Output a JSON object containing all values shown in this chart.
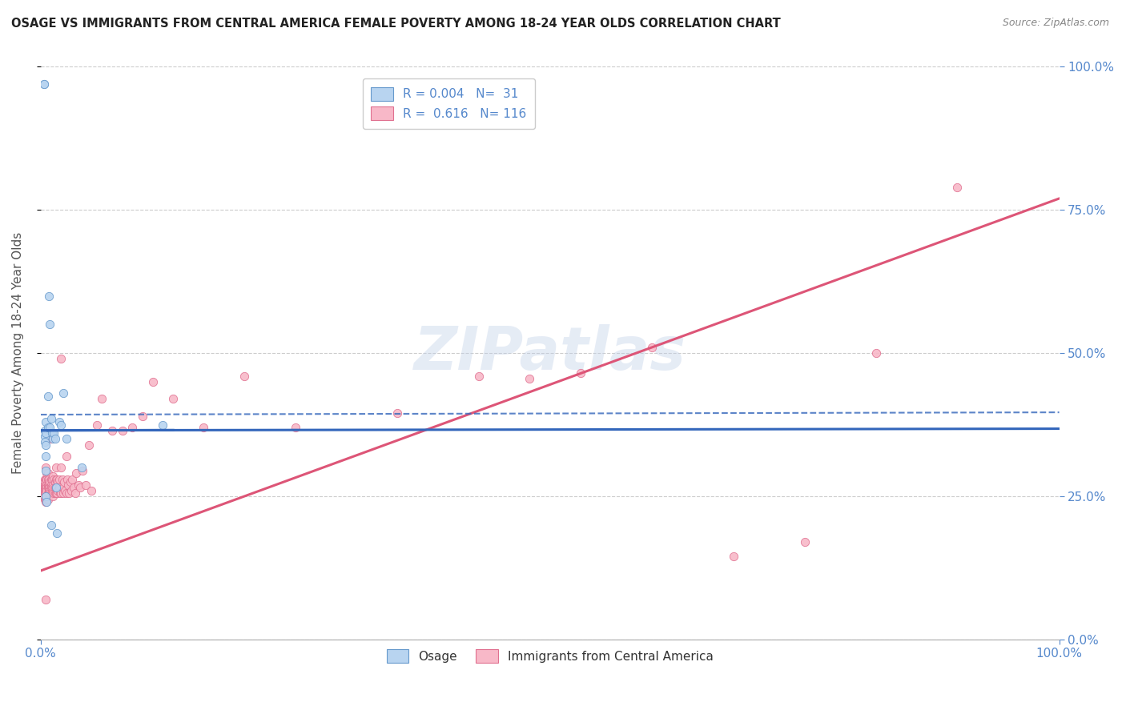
{
  "title": "OSAGE VS IMMIGRANTS FROM CENTRAL AMERICA FEMALE POVERTY AMONG 18-24 YEAR OLDS CORRELATION CHART",
  "source": "Source: ZipAtlas.com",
  "ylabel": "Female Poverty Among 18-24 Year Olds",
  "xmin": 0.0,
  "xmax": 1.0,
  "ymin": 0.0,
  "ymax": 1.0,
  "r_osage": 0.004,
  "n_osage": 31,
  "r_immigrants": 0.616,
  "n_immigrants": 116,
  "osage_fill_color": "#b8d4f0",
  "osage_edge_color": "#6699cc",
  "immigrants_fill_color": "#f8b8c8",
  "immigrants_edge_color": "#e07090",
  "osage_line_color": "#3366bb",
  "immigrants_line_color": "#dd5577",
  "background_color": "#ffffff",
  "grid_color": "#cccccc",
  "axis_label_color": "#5588cc",
  "title_color": "#222222",
  "watermark": "ZIPatlas",
  "osage_line_x0": 0.0,
  "osage_line_x1": 1.0,
  "osage_line_y0": 0.365,
  "osage_line_y1": 0.368,
  "immigrants_line_x0": 0.0,
  "immigrants_line_x1": 1.0,
  "immigrants_line_y0": 0.12,
  "immigrants_line_y1": 0.77,
  "osage_x": [
    0.003,
    0.003,
    0.004,
    0.004,
    0.004,
    0.005,
    0.005,
    0.005,
    0.005,
    0.005,
    0.005,
    0.006,
    0.007,
    0.007,
    0.008,
    0.009,
    0.009,
    0.01,
    0.01,
    0.011,
    0.012,
    0.013,
    0.014,
    0.015,
    0.016,
    0.018,
    0.02,
    0.022,
    0.025,
    0.04,
    0.12
  ],
  "osage_y": [
    0.97,
    0.97,
    0.365,
    0.355,
    0.345,
    0.38,
    0.36,
    0.34,
    0.32,
    0.295,
    0.25,
    0.24,
    0.425,
    0.37,
    0.6,
    0.55,
    0.37,
    0.385,
    0.2,
    0.36,
    0.35,
    0.36,
    0.35,
    0.265,
    0.185,
    0.38,
    0.375,
    0.43,
    0.35,
    0.3,
    0.375
  ],
  "immigrants_x": [
    0.003,
    0.003,
    0.003,
    0.003,
    0.003,
    0.004,
    0.004,
    0.004,
    0.004,
    0.004,
    0.004,
    0.005,
    0.005,
    0.005,
    0.005,
    0.005,
    0.005,
    0.005,
    0.005,
    0.005,
    0.005,
    0.006,
    0.006,
    0.006,
    0.006,
    0.006,
    0.007,
    0.007,
    0.007,
    0.007,
    0.007,
    0.007,
    0.008,
    0.008,
    0.008,
    0.008,
    0.008,
    0.009,
    0.009,
    0.009,
    0.009,
    0.01,
    0.01,
    0.01,
    0.01,
    0.01,
    0.011,
    0.011,
    0.011,
    0.012,
    0.012,
    0.012,
    0.012,
    0.013,
    0.013,
    0.013,
    0.014,
    0.014,
    0.014,
    0.015,
    0.015,
    0.015,
    0.015,
    0.016,
    0.016,
    0.016,
    0.017,
    0.017,
    0.018,
    0.018,
    0.019,
    0.02,
    0.02,
    0.02,
    0.021,
    0.022,
    0.022,
    0.023,
    0.024,
    0.025,
    0.025,
    0.026,
    0.027,
    0.028,
    0.029,
    0.03,
    0.031,
    0.032,
    0.034,
    0.035,
    0.037,
    0.039,
    0.041,
    0.044,
    0.047,
    0.05,
    0.055,
    0.06,
    0.07,
    0.08,
    0.09,
    0.1,
    0.11,
    0.13,
    0.16,
    0.2,
    0.25,
    0.35,
    0.43,
    0.48,
    0.53,
    0.6,
    0.68,
    0.75,
    0.82,
    0.9
  ],
  "immigrants_y": [
    0.27,
    0.265,
    0.26,
    0.255,
    0.25,
    0.28,
    0.27,
    0.265,
    0.26,
    0.255,
    0.245,
    0.3,
    0.28,
    0.275,
    0.265,
    0.26,
    0.255,
    0.25,
    0.245,
    0.24,
    0.07,
    0.29,
    0.28,
    0.27,
    0.265,
    0.26,
    0.29,
    0.28,
    0.27,
    0.265,
    0.255,
    0.245,
    0.28,
    0.27,
    0.265,
    0.26,
    0.255,
    0.275,
    0.265,
    0.26,
    0.255,
    0.35,
    0.28,
    0.27,
    0.265,
    0.255,
    0.28,
    0.265,
    0.255,
    0.285,
    0.27,
    0.26,
    0.25,
    0.28,
    0.265,
    0.255,
    0.275,
    0.265,
    0.255,
    0.3,
    0.28,
    0.265,
    0.255,
    0.28,
    0.265,
    0.255,
    0.275,
    0.26,
    0.28,
    0.265,
    0.255,
    0.49,
    0.3,
    0.255,
    0.28,
    0.265,
    0.255,
    0.275,
    0.26,
    0.32,
    0.255,
    0.28,
    0.27,
    0.255,
    0.275,
    0.26,
    0.28,
    0.265,
    0.255,
    0.29,
    0.27,
    0.265,
    0.295,
    0.27,
    0.34,
    0.26,
    0.375,
    0.42,
    0.365,
    0.365,
    0.37,
    0.39,
    0.45,
    0.42,
    0.37,
    0.46,
    0.37,
    0.395,
    0.46,
    0.455,
    0.465,
    0.51,
    0.145,
    0.17,
    0.5,
    0.79
  ]
}
